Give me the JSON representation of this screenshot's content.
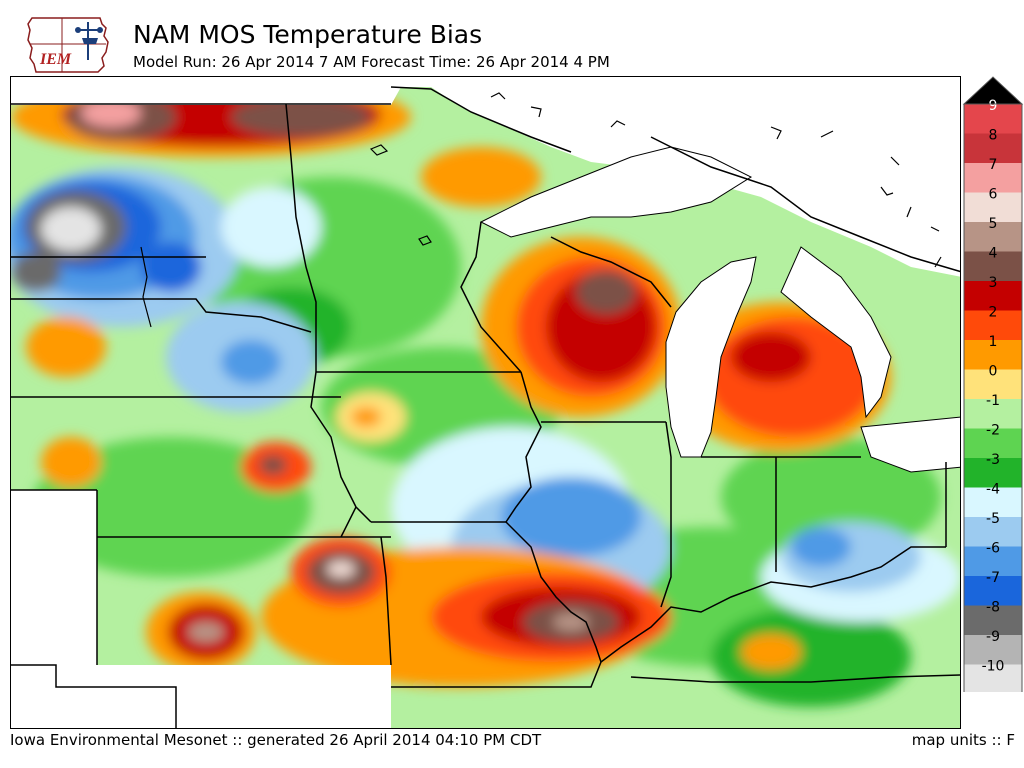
{
  "header": {
    "logo_text": "IEM",
    "title": "NAM MOS Temperature Bias",
    "subtitle": "Model Run: 26 Apr 2014 7 AM Forecast Time: 26 Apr 2014 4 PM"
  },
  "colorbar": {
    "levels": [
      {
        "label": "9",
        "color": "#e4464c"
      },
      {
        "label": "8",
        "color": "#c8343a"
      },
      {
        "label": "7",
        "color": "#f4a0a0"
      },
      {
        "label": "6",
        "color": "#f1ddd6"
      },
      {
        "label": "5",
        "color": "#b79486"
      },
      {
        "label": "4",
        "color": "#7b5147"
      },
      {
        "label": "3",
        "color": "#c40000"
      },
      {
        "label": "2",
        "color": "#ff4a0a"
      },
      {
        "label": "1",
        "color": "#ff9a00"
      },
      {
        "label": "0",
        "color": "#ffe27a"
      },
      {
        "label": "-1",
        "color": "#b4f0a0"
      },
      {
        "label": "-2",
        "color": "#5ed451"
      },
      {
        "label": "-3",
        "color": "#22b32a"
      },
      {
        "label": "-4",
        "color": "#d9f7ff"
      },
      {
        "label": "-5",
        "color": "#9ccbf0"
      },
      {
        "label": "-6",
        "color": "#4f9ae6"
      },
      {
        "label": "-7",
        "color": "#1a66dc"
      },
      {
        "label": "-8",
        "color": "#6b6b6b"
      },
      {
        "label": "-9",
        "color": "#b4b4b4"
      },
      {
        "label": "-10",
        "color": "#e4e4e4"
      }
    ],
    "overflow_high_color": "#000000",
    "overflow_low_color": "#ffffff"
  },
  "footer": {
    "source": "Iowa Environmental Mesonet :: generated 26 April 2014 04:10 PM CDT",
    "units": "map units :: F"
  }
}
